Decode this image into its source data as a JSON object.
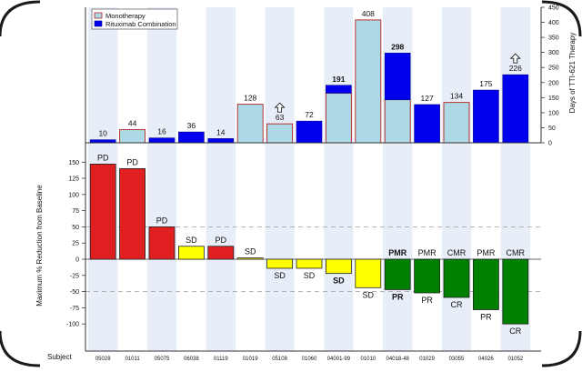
{
  "colors": {
    "monotherapy_fill": "#add8e6",
    "monotherapy_edge": "#b22222",
    "combo_fill": "#0000ee",
    "pd": "#e02020",
    "sd": "#ffff00",
    "response": "#008000",
    "stripe": "#e8eef7",
    "dash": "#aaaaaa"
  },
  "chart_data": [
    {
      "type": "bar",
      "title": "",
      "ylabel": "Days of TTI-621 Therapy",
      "ylim": [
        0,
        450
      ],
      "yticks": [
        0,
        50,
        100,
        150,
        200,
        250,
        300,
        350,
        400,
        450
      ],
      "legend": {
        "position": "top-left",
        "entries": [
          {
            "label": "Monotherapy",
            "color_key": "monotherapy_fill"
          },
          {
            "label": "Rituximab Combination",
            "color_key": "combo_fill"
          }
        ]
      },
      "categories": [
        "05028",
        "01011",
        "05075",
        "06038",
        "01119",
        "01019",
        "05108",
        "01060",
        "04001-99",
        "01010",
        "04018-48",
        "01029",
        "03055",
        "04026",
        "01052"
      ],
      "bars": [
        {
          "total": 10,
          "mono": 0,
          "combo": 10,
          "label": "10",
          "ongoing": false,
          "bold": false
        },
        {
          "total": 44,
          "mono": 44,
          "combo": 0,
          "label": "44",
          "ongoing": false,
          "bold": false
        },
        {
          "total": 16,
          "mono": 0,
          "combo": 16,
          "label": "16",
          "ongoing": false,
          "bold": false
        },
        {
          "total": 36,
          "mono": 0,
          "combo": 36,
          "label": "36",
          "ongoing": false,
          "bold": false
        },
        {
          "total": 14,
          "mono": 0,
          "combo": 14,
          "label": "14",
          "ongoing": false,
          "bold": false
        },
        {
          "total": 128,
          "mono": 128,
          "combo": 0,
          "label": "128",
          "ongoing": false,
          "bold": false
        },
        {
          "total": 63,
          "mono": 63,
          "combo": 0,
          "label": "63",
          "ongoing": true,
          "bold": false
        },
        {
          "total": 72,
          "mono": 0,
          "combo": 72,
          "label": "72",
          "ongoing": false,
          "bold": false
        },
        {
          "total": 191,
          "mono": 165,
          "combo": 26,
          "label": "191",
          "ongoing": false,
          "bold": true
        },
        {
          "total": 408,
          "mono": 408,
          "combo": 0,
          "label": "408",
          "ongoing": false,
          "bold": false
        },
        {
          "total": 298,
          "mono": 143,
          "combo": 155,
          "label": "298",
          "ongoing": false,
          "bold": true
        },
        {
          "total": 127,
          "mono": 0,
          "combo": 127,
          "label": "127",
          "ongoing": false,
          "bold": false
        },
        {
          "total": 134,
          "mono": 134,
          "combo": 0,
          "label": "134",
          "ongoing": false,
          "bold": false
        },
        {
          "total": 175,
          "mono": 0,
          "combo": 175,
          "label": "175",
          "ongoing": false,
          "bold": false
        },
        {
          "total": 226,
          "mono": 0,
          "combo": 226,
          "label": "226",
          "ongoing": true,
          "bold": false
        }
      ]
    },
    {
      "type": "bar",
      "title": "",
      "ylabel": "Maximum % Reduction from Baseline",
      "xlabel": "Subject",
      "ylim": [
        -125,
        165
      ],
      "yticks": [
        150,
        125,
        100,
        75,
        50,
        25,
        0,
        -25,
        -50,
        -75,
        -100
      ],
      "reference_lines": [
        50,
        -50
      ],
      "categories": [
        "05028",
        "01011",
        "05075",
        "06038",
        "01119",
        "01019",
        "05108",
        "01060",
        "04001-99",
        "01010",
        "04018-48",
        "01029",
        "03055",
        "04026",
        "01052"
      ],
      "values": [
        147,
        140,
        50,
        20,
        20,
        2,
        -14,
        -14,
        -22,
        -44,
        -47,
        -52,
        -59,
        -78,
        -100
      ],
      "categories_color": [
        "pd",
        "pd",
        "pd",
        "sd",
        "pd",
        "sd",
        "sd",
        "sd",
        "sd",
        "sd",
        "response",
        "response",
        "response",
        "response",
        "response"
      ],
      "annotations": [
        {
          "index": 0,
          "text": "PD",
          "side": "above",
          "bold": false
        },
        {
          "index": 1,
          "text": "PD",
          "side": "above",
          "bold": false
        },
        {
          "index": 2,
          "text": "PD",
          "side": "above",
          "bold": false
        },
        {
          "index": 3,
          "text": "SD",
          "side": "above",
          "bold": false
        },
        {
          "index": 4,
          "text": "PD",
          "side": "above",
          "bold": false
        },
        {
          "index": 5,
          "text": "SD",
          "side": "above",
          "bold": false
        },
        {
          "index": 6,
          "text": "SD",
          "side": "below",
          "bold": false
        },
        {
          "index": 7,
          "text": "SD",
          "side": "below",
          "bold": false
        },
        {
          "index": 8,
          "text": "SD",
          "side": "below",
          "bold": true
        },
        {
          "index": 9,
          "text": "SD",
          "side": "below",
          "bold": false
        },
        {
          "index": 10,
          "text": "PMR",
          "side": "above",
          "bold": true
        },
        {
          "index": 10,
          "text": "PR",
          "side": "below",
          "bold": true
        },
        {
          "index": 11,
          "text": "PMR",
          "side": "above",
          "bold": false
        },
        {
          "index": 11,
          "text": "PR",
          "side": "below",
          "bold": false
        },
        {
          "index": 12,
          "text": "CMR",
          "side": "above",
          "bold": false
        },
        {
          "index": 12,
          "text": "CR",
          "side": "below",
          "bold": false
        },
        {
          "index": 13,
          "text": "PMR",
          "side": "above",
          "bold": false
        },
        {
          "index": 13,
          "text": "PR",
          "side": "below",
          "bold": false
        },
        {
          "index": 14,
          "text": "CMR",
          "side": "above",
          "bold": false
        },
        {
          "index": 14,
          "text": "CR",
          "side": "below",
          "bold": false
        }
      ]
    }
  ]
}
